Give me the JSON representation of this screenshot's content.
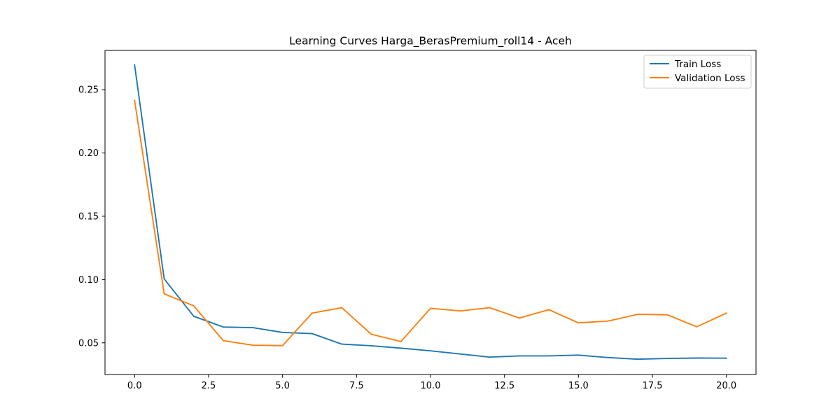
{
  "chart_data": {
    "type": "line",
    "title": "Learning Curves Harga_BerasPremium_roll14 - Aceh",
    "xlabel": "",
    "ylabel": "",
    "xlim": [
      -1,
      21
    ],
    "ylim": [
      0.025,
      0.281
    ],
    "x_ticks": [
      0.0,
      2.5,
      5.0,
      7.5,
      10.0,
      12.5,
      15.0,
      17.5,
      20.0
    ],
    "x_tick_labels": [
      "0.0",
      "2.5",
      "5.0",
      "7.5",
      "10.0",
      "12.5",
      "15.0",
      "17.5",
      "20.0"
    ],
    "y_ticks": [
      0.05,
      0.1,
      0.15,
      0.2,
      0.25
    ],
    "y_tick_labels": [
      "0.05",
      "0.10",
      "0.15",
      "0.20",
      "0.25"
    ],
    "grid": false,
    "legend_position": "top-right",
    "x": [
      0,
      1,
      2,
      3,
      4,
      5,
      6,
      7,
      8,
      9,
      10,
      11,
      12,
      13,
      14,
      15,
      16,
      17,
      18,
      19,
      20
    ],
    "series": [
      {
        "name": "Train Loss",
        "color": "#1f77b4",
        "values": [
          0.2695,
          0.1005,
          0.071,
          0.0625,
          0.062,
          0.0582,
          0.0573,
          0.049,
          0.0477,
          0.0458,
          0.0437,
          0.0412,
          0.0387,
          0.0397,
          0.0397,
          0.0403,
          0.0384,
          0.0371,
          0.0377,
          0.038,
          0.0379
        ]
      },
      {
        "name": "Validation Loss",
        "color": "#ff7f0e",
        "values": [
          0.2415,
          0.0887,
          0.0792,
          0.0517,
          0.0481,
          0.0478,
          0.0735,
          0.0778,
          0.0568,
          0.051,
          0.0773,
          0.0752,
          0.0778,
          0.0696,
          0.0762,
          0.0658,
          0.0672,
          0.0725,
          0.0722,
          0.0627,
          0.0735
        ]
      }
    ]
  }
}
